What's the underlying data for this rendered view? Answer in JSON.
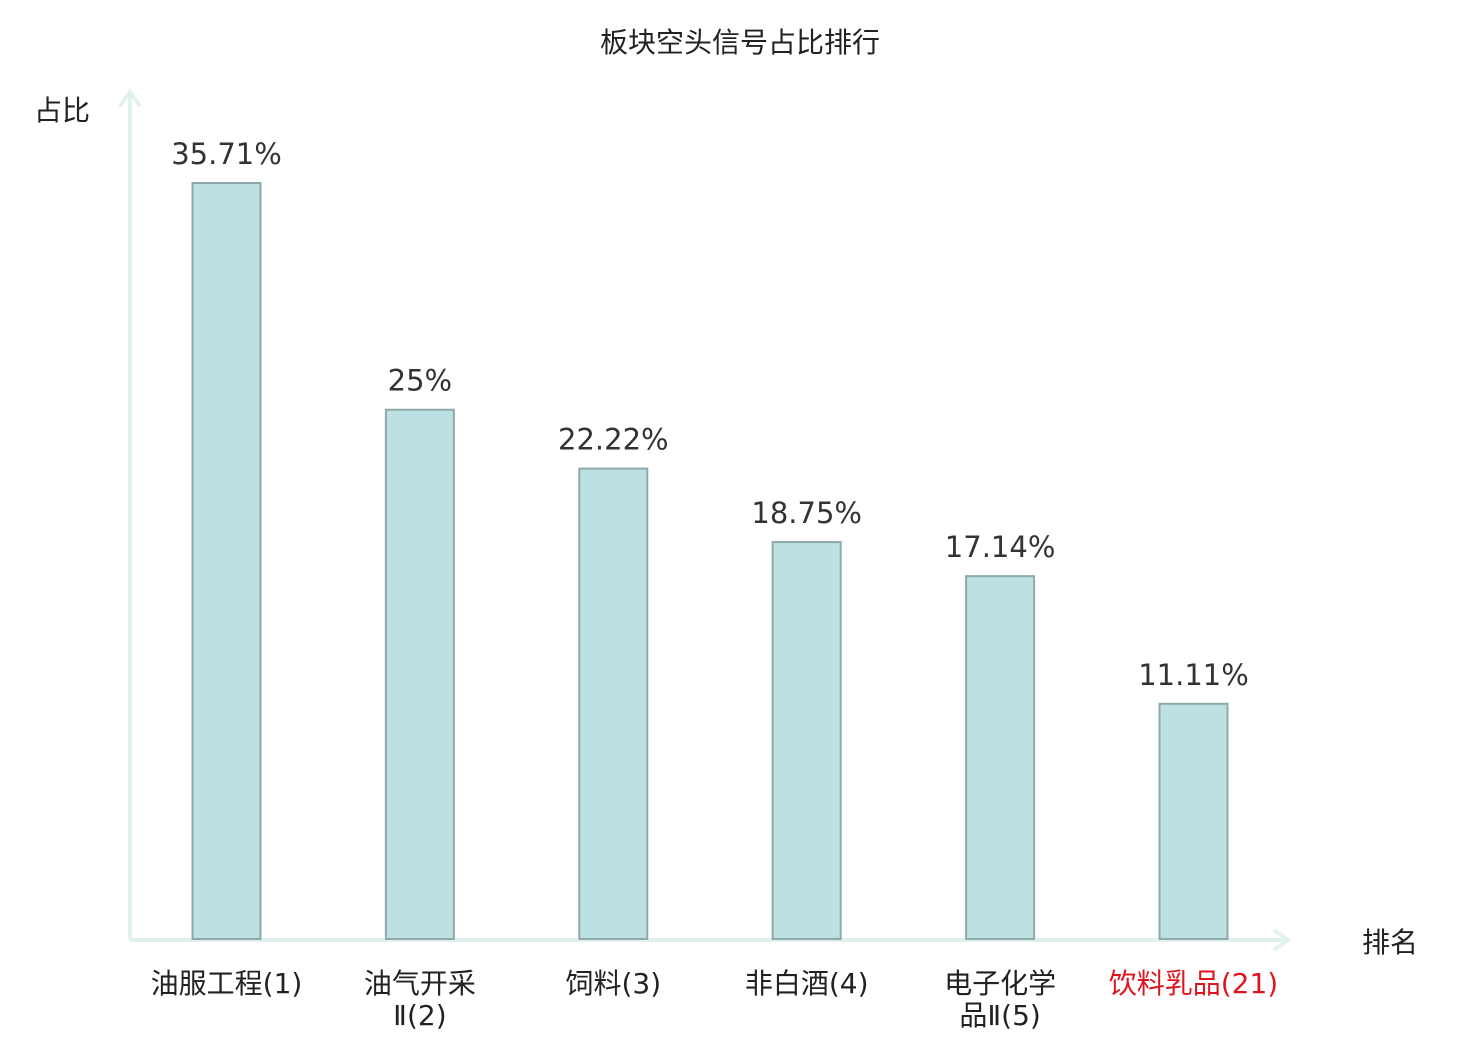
{
  "chart_data": {
    "type": "bar",
    "title": "板块空头信号占比排行",
    "ylabel": "占比",
    "xlabel": "排名",
    "categories": [
      [
        "油服工程(1)"
      ],
      [
        "油气开采",
        "Ⅱ(2)"
      ],
      [
        "饲料(3)"
      ],
      [
        "非白酒(4)"
      ],
      [
        "电子化学",
        "品Ⅱ(5)"
      ],
      [
        "饮料乳品(21)"
      ]
    ],
    "values": [
      35.71,
      25,
      22.22,
      18.75,
      17.14,
      11.11
    ],
    "value_labels": [
      "35.71%",
      "25%",
      "22.22%",
      "18.75%",
      "17.14%",
      "11.11%"
    ],
    "highlight_index": 5,
    "highlight_color": "#e0141e",
    "bar_color": "#bde0e2",
    "bar_border_color": "#8fa8aa",
    "axis_color": "#e0f2f0",
    "ylim": [
      0,
      40
    ],
    "grid": false,
    "legend": "none"
  }
}
